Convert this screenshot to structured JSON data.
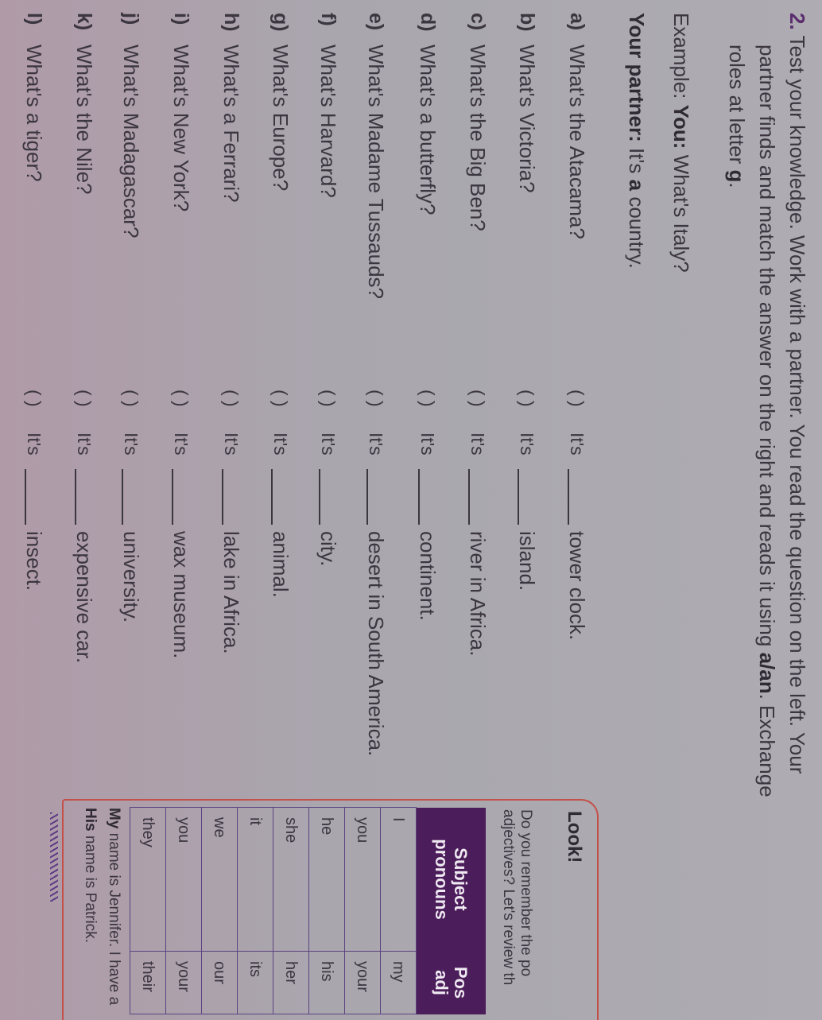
{
  "exercise": {
    "number": "2.",
    "instruction_lines": [
      "Test your knowledge. Work with a partner. You read the question on the left. Your",
      "partner finds and match the answer on the right and reads it using ",
      "roles at letter "
    ],
    "bold_aan": "a/an",
    "exchange": ". Exchange",
    "letter_g": "g",
    "period": ".",
    "example_label": "Example: ",
    "example_you": "You:",
    "example_question": " What's Italy?",
    "partner_label": "Your partner:",
    "partner_pre": " It's ",
    "partner_a": "a",
    "partner_post": " country."
  },
  "items": [
    {
      "letter": "a)",
      "question": "What's the Atacama?",
      "paren": "(    )",
      "its": "It's",
      "answer": "tower clock."
    },
    {
      "letter": "b)",
      "question": "What's Victoria?",
      "paren": "(    )",
      "its": "It's",
      "answer": "island."
    },
    {
      "letter": "c)",
      "question": "What's the Big Ben?",
      "paren": "(    )",
      "its": "It's",
      "answer": "river in Africa."
    },
    {
      "letter": "d)",
      "question": "What's a butterfly?",
      "paren": "(    )",
      "its": "It's",
      "answer": "continent."
    },
    {
      "letter": "e)",
      "question": "What's Madame Tussauds?",
      "paren": "(    )",
      "its": "It's",
      "answer": "desert in South America."
    },
    {
      "letter": "f)",
      "question": "What's Harvard?",
      "paren": "(    )",
      "its": "It's",
      "answer": "city."
    },
    {
      "letter": "g)",
      "question": "What's Europe?",
      "paren": "(    )",
      "its": "It's",
      "answer": "animal."
    },
    {
      "letter": "h)",
      "question": "What's a Ferrari?",
      "paren": "(    )",
      "its": "It's",
      "answer": "lake in Africa."
    },
    {
      "letter": "i)",
      "question": "What's New York?",
      "paren": "(    )",
      "its": "It's",
      "answer": "wax museum."
    },
    {
      "letter": "j)",
      "question": "What's Madagascar?",
      "paren": "(    )",
      "its": "It's",
      "answer": "university."
    },
    {
      "letter": "k)",
      "question": "What's the Nile?",
      "paren": "(    )",
      "its": "It's",
      "answer": "expensive car."
    },
    {
      "letter": "l)",
      "question": "What's a tiger?",
      "paren": "(    )",
      "its": "It's",
      "answer": "insect."
    }
  ],
  "look": {
    "title": "Look!",
    "lines": [
      "Do you remember the po",
      "adjectives? Let's review th"
    ],
    "table": {
      "headers": [
        [
          "Subject",
          "pronouns"
        ],
        [
          "Pos",
          "adj"
        ]
      ],
      "rows": [
        [
          "I",
          "my"
        ],
        [
          "you",
          "your"
        ],
        [
          "he",
          "his"
        ],
        [
          "she",
          "her"
        ],
        [
          "it",
          "its"
        ],
        [
          "we",
          "our"
        ],
        [
          "you",
          "your"
        ],
        [
          "they",
          "their"
        ]
      ]
    },
    "note_line1_bold": "My",
    "note_line1": " name is Jennifer. I have a",
    "note_line2_bold": "His",
    "note_line2": " name is Patrick."
  },
  "colors": {
    "header_purple": "#4b1d5a",
    "box_border": "#c4504a",
    "text": "#3b3640"
  }
}
